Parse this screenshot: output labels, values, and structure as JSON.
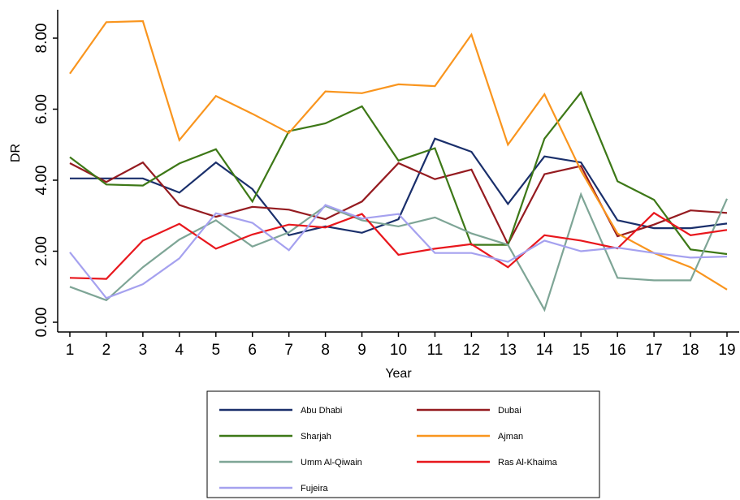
{
  "chart_data": {
    "type": "line",
    "xlabel": "Year",
    "ylabel": "DR",
    "x": [
      1,
      2,
      3,
      4,
      5,
      6,
      7,
      8,
      9,
      10,
      11,
      12,
      13,
      14,
      15,
      16,
      17,
      18,
      19
    ],
    "x_tick_labels": [
      "1",
      "2",
      "3",
      "4",
      "5",
      "6",
      "7",
      "8",
      "9",
      "10",
      "11",
      "12",
      "13",
      "14",
      "15",
      "16",
      "17",
      "18",
      "19"
    ],
    "y_ticks": [
      0,
      2,
      4,
      6,
      8
    ],
    "y_tick_labels": [
      "0.00",
      "2.00",
      "4.00",
      "6.00",
      "8.00"
    ],
    "ylim": [
      0,
      8.5
    ],
    "grid": false,
    "legend_position": "bottom",
    "series": [
      {
        "name": "Abu Dhabi",
        "color": "#1a2f6b",
        "values": [
          4.05,
          4.05,
          4.05,
          3.65,
          4.5,
          3.75,
          2.45,
          2.7,
          2.52,
          2.9,
          5.17,
          4.8,
          3.33,
          4.67,
          4.5,
          2.87,
          2.65,
          2.65,
          2.78
        ]
      },
      {
        "name": "Dubai",
        "color": "#951b20",
        "values": [
          4.48,
          3.95,
          4.5,
          3.3,
          2.97,
          3.25,
          3.17,
          2.9,
          3.4,
          4.48,
          4.03,
          4.3,
          2.2,
          4.17,
          4.4,
          2.42,
          2.75,
          3.15,
          3.08
        ]
      },
      {
        "name": "Sharjah",
        "color": "#3d7817",
        "values": [
          4.65,
          3.88,
          3.85,
          4.47,
          4.87,
          3.4,
          5.38,
          5.6,
          6.08,
          4.55,
          4.9,
          2.18,
          2.18,
          5.17,
          6.47,
          3.97,
          3.45,
          2.05,
          1.92
        ]
      },
      {
        "name": "Ajman",
        "color": "#f9951e",
        "values": [
          7.0,
          8.45,
          8.48,
          5.13,
          6.37,
          5.87,
          5.33,
          6.5,
          6.45,
          6.7,
          6.65,
          8.1,
          5.0,
          6.42,
          4.27,
          2.5,
          1.95,
          1.55,
          0.92
        ]
      },
      {
        "name": "Umm Al-Qiwain",
        "color": "#7ea596",
        "values": [
          1.0,
          0.62,
          1.55,
          2.33,
          2.87,
          2.13,
          2.53,
          3.27,
          2.87,
          2.7,
          2.95,
          2.5,
          2.18,
          0.35,
          3.6,
          1.25,
          1.18,
          1.18,
          3.48
        ]
      },
      {
        "name": "Ras Al-Khaima",
        "color": "#e8171d",
        "values": [
          1.25,
          1.22,
          2.3,
          2.77,
          2.07,
          2.47,
          2.75,
          2.67,
          3.05,
          1.9,
          2.07,
          2.2,
          1.55,
          2.45,
          2.3,
          2.08,
          3.08,
          2.45,
          2.6
        ]
      },
      {
        "name": "Fujeira",
        "color": "#a5a1ef",
        "values": [
          1.97,
          0.68,
          1.07,
          1.8,
          3.07,
          2.8,
          2.03,
          3.3,
          2.92,
          3.05,
          1.95,
          1.95,
          1.7,
          2.3,
          2.0,
          2.1,
          1.95,
          1.82,
          1.85
        ]
      }
    ]
  }
}
